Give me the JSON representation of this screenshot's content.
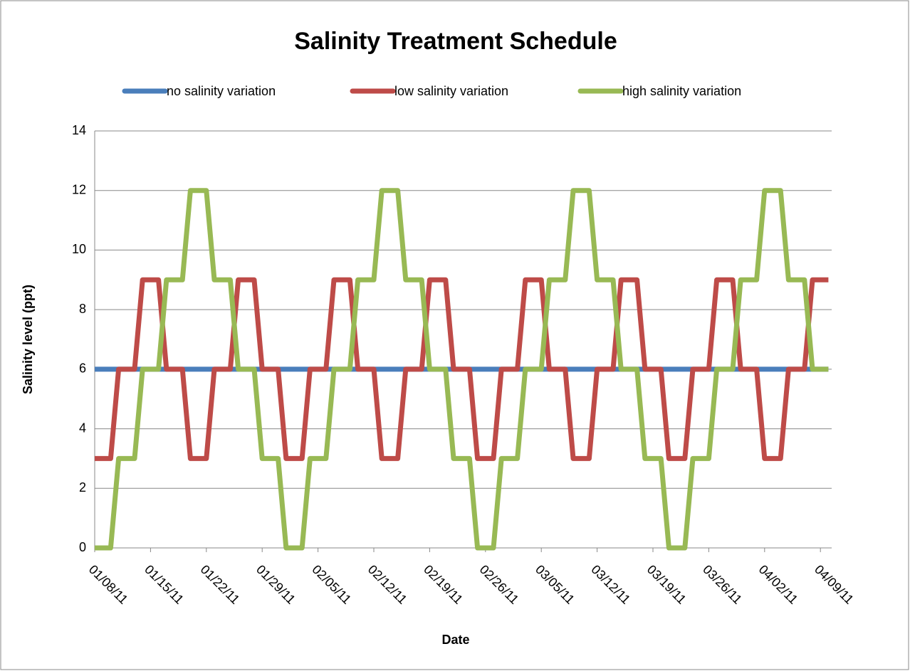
{
  "chart_data": {
    "type": "line",
    "title": "Salinity Treatment Schedule",
    "x_label": "Date",
    "y_label": "Salinity level (ppt)",
    "x": [
      "01/08/11",
      "01/09/11",
      "01/10/11",
      "01/11/11",
      "01/12/11",
      "01/13/11",
      "01/14/11",
      "01/15/11",
      "01/16/11",
      "01/17/11",
      "01/18/11",
      "01/19/11",
      "01/20/11",
      "01/21/11",
      "01/22/11",
      "01/23/11",
      "01/24/11",
      "01/25/11",
      "01/26/11",
      "01/27/11",
      "01/28/11",
      "01/29/11",
      "01/30/11",
      "01/31/11",
      "02/01/11",
      "02/02/11",
      "02/03/11",
      "02/04/11",
      "02/05/11",
      "02/06/11",
      "02/07/11",
      "02/08/11",
      "02/09/11",
      "02/10/11",
      "02/11/11",
      "02/12/11",
      "02/13/11",
      "02/14/11",
      "02/15/11",
      "02/16/11",
      "02/17/11",
      "02/18/11",
      "02/19/11",
      "02/20/11",
      "02/21/11",
      "02/22/11",
      "02/23/11",
      "02/24/11",
      "02/25/11",
      "02/26/11",
      "02/27/11",
      "02/28/11",
      "03/01/11",
      "03/02/11",
      "03/03/11",
      "03/04/11",
      "03/05/11",
      "03/06/11",
      "03/07/11",
      "03/08/11",
      "03/09/11",
      "03/10/11",
      "03/11/11",
      "03/12/11",
      "03/13/11",
      "03/14/11",
      "03/15/11",
      "03/16/11",
      "03/17/11",
      "03/18/11",
      "03/19/11",
      "03/20/11",
      "03/21/11",
      "03/22/11",
      "03/23/11",
      "03/24/11",
      "03/25/11",
      "03/26/11",
      "03/27/11",
      "03/28/11",
      "03/29/11",
      "03/30/11",
      "03/31/11",
      "04/01/11",
      "04/02/11",
      "04/03/11",
      "04/04/11",
      "04/05/11",
      "04/06/11",
      "04/07/11",
      "04/08/11",
      "04/09/11",
      "04/10/11"
    ],
    "series": [
      {
        "name": "no salinity variation",
        "color": "#4a7ebb",
        "values": [
          6,
          6,
          6,
          6,
          6,
          6,
          6,
          6,
          6,
          6,
          6,
          6,
          6,
          6,
          6,
          6,
          6,
          6,
          6,
          6,
          6,
          6,
          6,
          6,
          6,
          6,
          6,
          6,
          6,
          6,
          6,
          6,
          6,
          6,
          6,
          6,
          6,
          6,
          6,
          6,
          6,
          6,
          6,
          6,
          6,
          6,
          6,
          6,
          6,
          6,
          6,
          6,
          6,
          6,
          6,
          6,
          6,
          6,
          6,
          6,
          6,
          6,
          6,
          6,
          6,
          6,
          6,
          6,
          6,
          6,
          6,
          6,
          6,
          6,
          6,
          6,
          6,
          6,
          6,
          6,
          6,
          6,
          6,
          6,
          6,
          6,
          6,
          6,
          6,
          6,
          6,
          6,
          6
        ]
      },
      {
        "name": "low salinity variation",
        "color": "#be4b48",
        "values": [
          3,
          3,
          3,
          6,
          6,
          6,
          9,
          9,
          9,
          6,
          6,
          6,
          3,
          3,
          3,
          6,
          6,
          6,
          9,
          9,
          9,
          6,
          6,
          6,
          3,
          3,
          3,
          6,
          6,
          6,
          9,
          9,
          9,
          6,
          6,
          6,
          3,
          3,
          3,
          6,
          6,
          6,
          9,
          9,
          9,
          6,
          6,
          6,
          3,
          3,
          3,
          6,
          6,
          6,
          9,
          9,
          9,
          6,
          6,
          6,
          3,
          3,
          3,
          6,
          6,
          6,
          9,
          9,
          9,
          6,
          6,
          6,
          3,
          3,
          3,
          6,
          6,
          6,
          9,
          9,
          9,
          6,
          6,
          6,
          3,
          3,
          3,
          6,
          6,
          6,
          9,
          9,
          9
        ]
      },
      {
        "name": "high salinity variation",
        "color": "#98b954",
        "values": [
          0,
          0,
          0,
          3,
          3,
          3,
          6,
          6,
          6,
          9,
          9,
          9,
          12,
          12,
          12,
          9,
          9,
          9,
          6,
          6,
          6,
          3,
          3,
          3,
          0,
          0,
          0,
          3,
          3,
          3,
          6,
          6,
          6,
          9,
          9,
          9,
          12,
          12,
          12,
          9,
          9,
          9,
          6,
          6,
          6,
          3,
          3,
          3,
          0,
          0,
          0,
          3,
          3,
          3,
          6,
          6,
          6,
          9,
          9,
          9,
          12,
          12,
          12,
          9,
          9,
          9,
          6,
          6,
          6,
          3,
          3,
          3,
          0,
          0,
          0,
          3,
          3,
          3,
          6,
          6,
          6,
          9,
          9,
          9,
          12,
          12,
          12,
          9,
          9,
          9,
          6,
          6,
          6
        ]
      }
    ],
    "xticks": [
      "01/08/11",
      "01/15/11",
      "01/22/11",
      "01/29/11",
      "02/05/11",
      "02/12/11",
      "02/19/11",
      "02/26/11",
      "03/05/11",
      "03/12/11",
      "03/19/11",
      "03/26/11",
      "04/02/11",
      "04/09/11"
    ],
    "ylim": [
      0,
      14
    ],
    "yticks": [
      0,
      2,
      4,
      6,
      8,
      10,
      12,
      14
    ],
    "grid": true,
    "legend": "top"
  }
}
